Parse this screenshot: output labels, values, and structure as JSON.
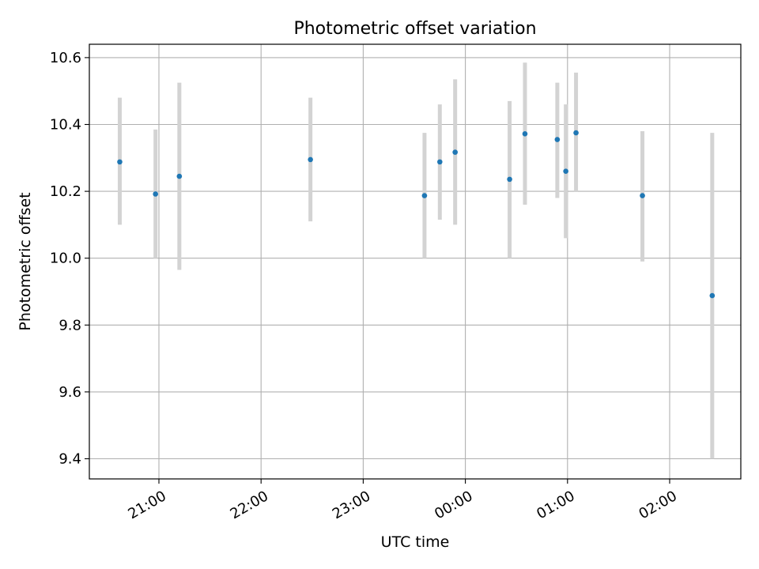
{
  "chart_data": {
    "type": "scatter",
    "title": "Photometric offset variation",
    "xlabel": "UTC time",
    "ylabel": "Photometric offset",
    "grid": true,
    "x_tick_labels": [
      "21:00",
      "22:00",
      "23:00",
      "00:00",
      "01:00",
      "02:00"
    ],
    "y_tick_labels": [
      "9.4",
      "9.6",
      "9.8",
      "10.0",
      "10.2",
      "10.4",
      "10.6"
    ],
    "points": [
      {
        "x": "20:37",
        "y": 10.288,
        "err_low": 10.1,
        "err_high": 10.48
      },
      {
        "x": "20:58",
        "y": 10.192,
        "err_low": 10.0,
        "err_high": 10.385
      },
      {
        "x": "21:12",
        "y": 10.245,
        "err_low": 9.965,
        "err_high": 10.525
      },
      {
        "x": "22:29",
        "y": 10.295,
        "err_low": 10.11,
        "err_high": 10.48
      },
      {
        "x": "23:36",
        "y": 10.187,
        "err_low": 10.0,
        "err_high": 10.375
      },
      {
        "x": "23:45",
        "y": 10.288,
        "err_low": 10.115,
        "err_high": 10.46
      },
      {
        "x": "23:54",
        "y": 10.317,
        "err_low": 10.1,
        "err_high": 10.535
      },
      {
        "x": "00:26",
        "y": 10.236,
        "err_low": 10.0,
        "err_high": 10.47
      },
      {
        "x": "00:35",
        "y": 10.372,
        "err_low": 10.16,
        "err_high": 10.585
      },
      {
        "x": "00:54",
        "y": 10.355,
        "err_low": 10.18,
        "err_high": 10.525
      },
      {
        "x": "00:59",
        "y": 10.26,
        "err_low": 10.06,
        "err_high": 10.46
      },
      {
        "x": "01:05",
        "y": 10.375,
        "err_low": 10.2,
        "err_high": 10.555
      },
      {
        "x": "01:44",
        "y": 10.187,
        "err_low": 9.99,
        "err_high": 10.38
      },
      {
        "x": "02:25",
        "y": 9.888,
        "err_low": 9.4,
        "err_high": 10.375
      }
    ],
    "colors": {
      "point": "#1f77b4",
      "errorbar": "#d3d3d3",
      "grid": "#b0b0b0",
      "axes": "#000000"
    }
  }
}
